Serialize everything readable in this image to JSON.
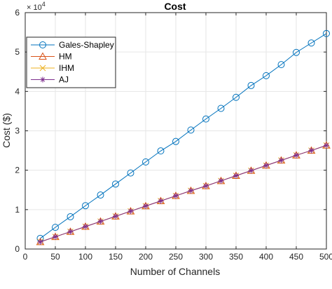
{
  "chart_data": {
    "type": "line",
    "title": "Cost",
    "xlabel": "Number of Channels",
    "ylabel": "Cost ($)",
    "y_exponent_base": "× 10",
    "y_exponent_power": "4",
    "xlim": [
      0,
      500
    ],
    "ylim": [
      0,
      60000
    ],
    "x_ticks": [
      0,
      50,
      100,
      150,
      200,
      250,
      300,
      350,
      400,
      450,
      500
    ],
    "y_ticks": [
      0,
      10000,
      20000,
      30000,
      40000,
      50000,
      60000
    ],
    "x_tick_labels": [
      "0",
      "50",
      "100",
      "150",
      "200",
      "250",
      "300",
      "350",
      "400",
      "450",
      "500"
    ],
    "y_tick_labels": [
      "0",
      "1",
      "2",
      "3",
      "4",
      "5",
      "6"
    ],
    "grid": true,
    "legend_position": "top-left",
    "x": [
      25,
      50,
      75,
      100,
      125,
      150,
      175,
      200,
      225,
      250,
      275,
      300,
      325,
      350,
      375,
      400,
      425,
      450,
      475,
      500
    ],
    "series": [
      {
        "name": "Gales-Shapley",
        "color": "#0072BD",
        "marker": "circle",
        "values": [
          2700,
          5500,
          8200,
          11000,
          13700,
          16500,
          19300,
          22100,
          24900,
          27300,
          30200,
          33000,
          35700,
          38500,
          41500,
          44000,
          46800,
          49900,
          52300,
          54700
        ]
      },
      {
        "name": "HM",
        "color": "#D95319",
        "marker": "triangle",
        "values": [
          1800,
          3100,
          4400,
          5700,
          7000,
          8300,
          9600,
          10900,
          12200,
          13500,
          14800,
          16000,
          17300,
          18600,
          19900,
          21200,
          22500,
          23800,
          25000,
          26300
        ]
      },
      {
        "name": "IHM",
        "color": "#EDB120",
        "marker": "x",
        "values": [
          1800,
          3100,
          4400,
          5700,
          7000,
          8300,
          9600,
          10900,
          12200,
          13500,
          14800,
          16000,
          17300,
          18600,
          19900,
          21200,
          22500,
          23800,
          25000,
          26300
        ]
      },
      {
        "name": "AJ",
        "color": "#7E2F8E",
        "marker": "asterisk",
        "values": [
          1800,
          3100,
          4400,
          5700,
          7000,
          8300,
          9600,
          10900,
          12200,
          13500,
          14800,
          16000,
          17300,
          18600,
          19900,
          21200,
          22500,
          23800,
          25000,
          26300
        ]
      }
    ]
  }
}
